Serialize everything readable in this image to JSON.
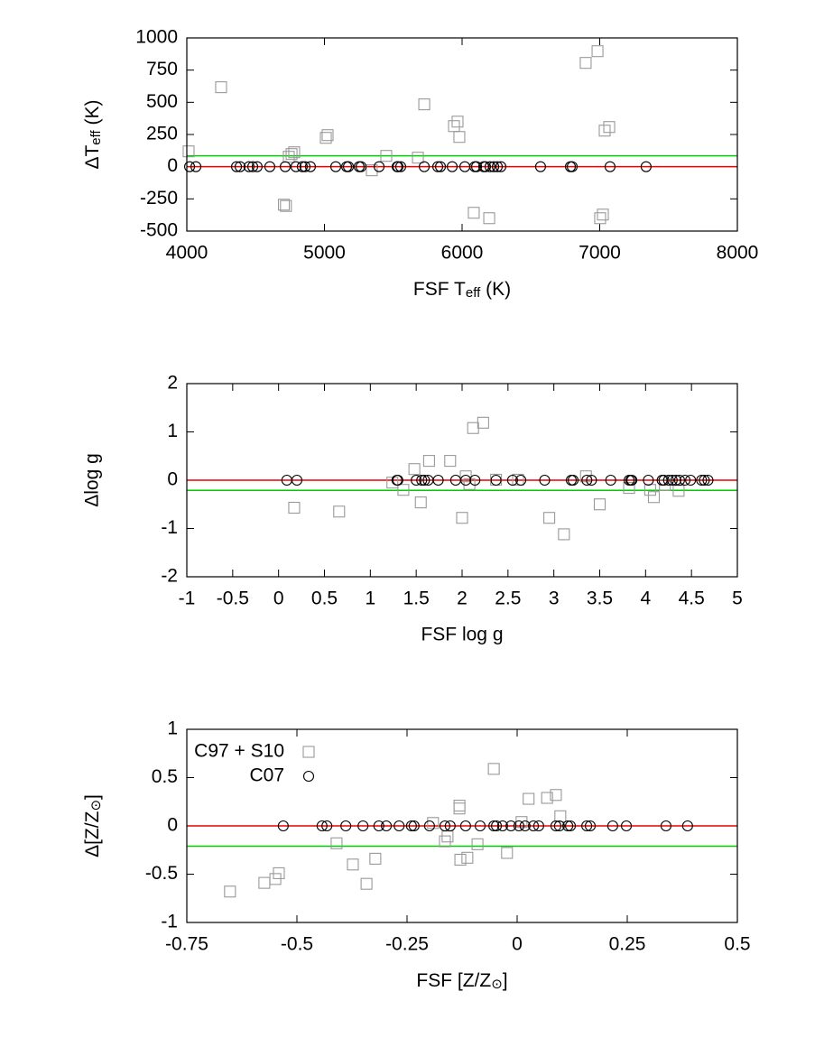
{
  "chart_data": [
    {
      "type": "scatter",
      "xlabel": [
        {
          "text": "FSF T"
        },
        {
          "text": "eff",
          "sub": true
        },
        {
          "text": " (K)"
        }
      ],
      "ylabel": [
        {
          "text": "ΔT"
        },
        {
          "text": "eff",
          "sub": true
        },
        {
          "text": " (K)"
        }
      ],
      "xlim": [
        4000,
        8000
      ],
      "xticks": [
        4000,
        5000,
        6000,
        7000,
        8000
      ],
      "ylim": [
        -500,
        1000
      ],
      "yticks": [
        -500,
        -250,
        0,
        250,
        500,
        750,
        1000
      ],
      "hlines": [
        {
          "value": 0,
          "color": "#ee0000"
        },
        {
          "value": 84,
          "color": "#00cc00"
        }
      ],
      "series": [
        {
          "marker": "square",
          "color": "#999999",
          "x": [
            4013,
            4249,
            4741,
            4761,
            4780,
            4705,
            4720,
            5010,
            5023,
            5344,
            5449,
            5679,
            5725,
            5941,
            5967,
            5980,
            6085,
            6197,
            6898,
            6984,
            7003,
            7023,
            7036,
            7069
          ],
          "values": [
            119,
            617,
            77,
            98,
            112,
            -295,
            -305,
            224,
            245,
            -28,
            84,
            70,
            484,
            315,
            350,
            231,
            -358,
            -400,
            806,
            897,
            -400,
            -372,
            280,
            308
          ]
        },
        {
          "marker": "circle",
          "color": "#000000",
          "x": [
            4020,
            4066,
            4361,
            4387,
            4452,
            4479,
            4511,
            4603,
            4715,
            4793,
            4839,
            4859,
            4898,
            5082,
            5161,
            5174,
            5252,
            5266,
            5397,
            5528,
            5534,
            5554,
            5725,
            5823,
            5843,
            5928,
            6020,
            6092,
            6105,
            6157,
            6170,
            6203,
            6230,
            6256,
            6282,
            6570,
            6787,
            6800,
            7075,
            7337
          ],
          "values": [
            0,
            0,
            0,
            0,
            0,
            0,
            0,
            0,
            0,
            0,
            0,
            0,
            0,
            0,
            0,
            0,
            0,
            0,
            0,
            0,
            0,
            0,
            0,
            0,
            0,
            0,
            0,
            0,
            0,
            0,
            0,
            0,
            0,
            0,
            0,
            0,
            0,
            0,
            0,
            0
          ]
        }
      ]
    },
    {
      "type": "scatter",
      "xlabel": "FSF log g",
      "ylabel": "Δlog g",
      "xlim": [
        -1,
        5
      ],
      "xticks": [
        -1,
        -0.5,
        0,
        0.5,
        1,
        1.5,
        2,
        2.5,
        3,
        3.5,
        4,
        4.5,
        5
      ],
      "ylim": [
        -2,
        2
      ],
      "yticks": [
        -2,
        -1,
        0,
        1,
        2
      ],
      "hlines": [
        {
          "value": 0,
          "color": "#ee0000"
        },
        {
          "value": -0.21,
          "color": "#00cc00"
        }
      ],
      "series": [
        {
          "marker": "square",
          "color": "#999999",
          "x": [
            0.17,
            0.66,
            1.24,
            1.36,
            1.48,
            1.55,
            1.64,
            1.87,
            2.0,
            2.04,
            2.08,
            2.12,
            2.23,
            2.37,
            2.61,
            2.95,
            3.11,
            3.35,
            3.5,
            3.82,
            4.05,
            4.09,
            4.21,
            4.36
          ],
          "values": [
            -0.57,
            -0.65,
            -0.05,
            -0.2,
            0.23,
            -0.46,
            0.4,
            0.4,
            -0.78,
            0.08,
            -0.08,
            1.08,
            1.19,
            0.01,
            0.01,
            -0.78,
            -1.12,
            0.08,
            -0.5,
            -0.16,
            -0.2,
            -0.35,
            -0.1,
            -0.22
          ]
        },
        {
          "marker": "circle",
          "color": "#000000",
          "x": [
            0.09,
            0.2,
            1.29,
            1.3,
            1.5,
            1.56,
            1.59,
            1.63,
            1.74,
            1.93,
            2.04,
            2.14,
            2.37,
            2.55,
            2.64,
            2.9,
            3.19,
            3.21,
            3.36,
            3.41,
            3.62,
            3.82,
            3.84,
            3.85,
            4.03,
            4.18,
            4.2,
            4.25,
            4.29,
            4.33,
            4.37,
            4.43,
            4.49,
            4.61,
            4.64,
            4.68
          ],
          "values": [
            0,
            0,
            0,
            0,
            0,
            0,
            0,
            0,
            0,
            0,
            0,
            0,
            0,
            0,
            0,
            0,
            0,
            0,
            0,
            0,
            0,
            0,
            0,
            0,
            0,
            0,
            0,
            0,
            0,
            0,
            0,
            0,
            0,
            0,
            0,
            0
          ]
        }
      ]
    },
    {
      "type": "scatter",
      "xlabel": [
        {
          "text": "FSF [Z/Z"
        },
        {
          "text": "⊙",
          "sub": true
        },
        {
          "text": "]"
        }
      ],
      "ylabel": [
        {
          "text": "Δ[Z/Z"
        },
        {
          "text": "⊙",
          "sub": true
        },
        {
          "text": "]"
        }
      ],
      "xlim": [
        -0.75,
        0.5
      ],
      "xticks": [
        -0.75,
        -0.5,
        -0.25,
        0,
        0.25,
        0.5
      ],
      "ylim": [
        -1,
        1
      ],
      "yticks": [
        -1,
        -0.5,
        0,
        0.5,
        1
      ],
      "hlines": [
        {
          "value": 0,
          "color": "#ee0000"
        },
        {
          "value": -0.21,
          "color": "#00cc00"
        }
      ],
      "legend": "top-left",
      "series": [
        {
          "name": "C97 + S10",
          "marker": "square",
          "color": "#999999",
          "x": [
            -0.652,
            -0.574,
            -0.549,
            -0.541,
            -0.41,
            -0.373,
            -0.342,
            -0.322,
            -0.191,
            -0.164,
            -0.158,
            -0.131,
            -0.131,
            -0.129,
            -0.113,
            -0.09,
            -0.053,
            -0.023,
            0.01,
            0.026,
            0.068,
            0.088,
            0.098
          ],
          "values": [
            -0.68,
            -0.59,
            -0.55,
            -0.49,
            -0.18,
            -0.4,
            -0.6,
            -0.34,
            0.03,
            -0.16,
            -0.11,
            0.21,
            0.18,
            -0.35,
            -0.33,
            -0.19,
            0.59,
            -0.28,
            0.04,
            0.28,
            0.29,
            0.32,
            0.1
          ]
        },
        {
          "name": "C07",
          "marker": "circle",
          "color": "#000000",
          "x": [
            -0.531,
            -0.443,
            -0.432,
            -0.389,
            -0.35,
            -0.314,
            -0.297,
            -0.268,
            -0.24,
            -0.234,
            -0.199,
            -0.164,
            -0.152,
            -0.117,
            -0.084,
            -0.053,
            -0.047,
            -0.033,
            -0.014,
            0.004,
            0.018,
            0.037,
            0.049,
            0.088,
            0.096,
            0.115,
            0.121,
            0.158,
            0.166,
            0.217,
            0.248,
            0.338,
            0.387
          ],
          "values": [
            0,
            0,
            0,
            0,
            0,
            0,
            0,
            0,
            0,
            0,
            0,
            0,
            0,
            0,
            0,
            0,
            0,
            0,
            0,
            0,
            0,
            0,
            0,
            0,
            0,
            0,
            0,
            0,
            0,
            0,
            0,
            0,
            0
          ]
        }
      ]
    }
  ]
}
